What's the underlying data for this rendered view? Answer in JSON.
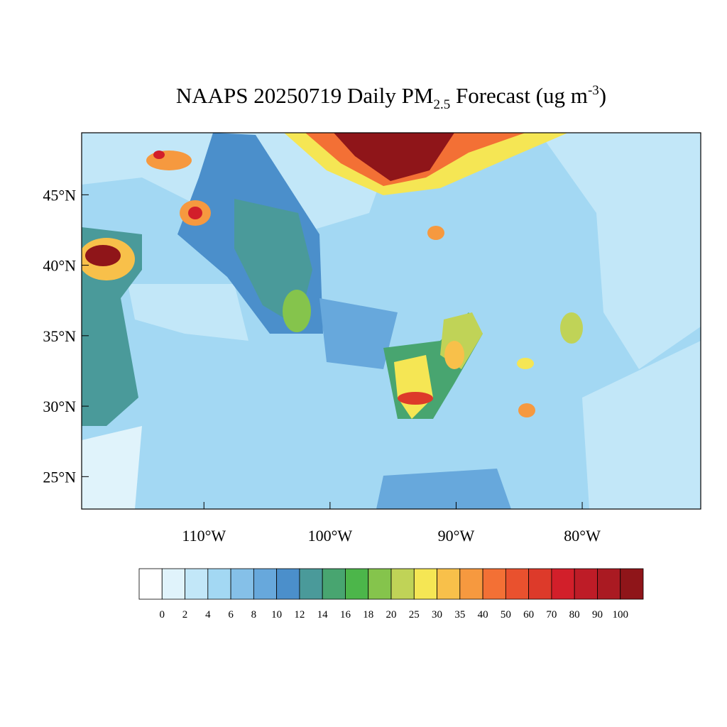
{
  "map": {
    "title": {
      "main": "NAAPS 20250719 Daily PM",
      "sub": "2.5",
      "rest": " Forecast (ug m",
      "sup": "-3",
      "end": ")"
    },
    "xlim": [
      -119.7,
      -70.6
    ],
    "ylim": [
      22.7,
      49.4
    ],
    "lat_ticks": [
      {
        "value": 45,
        "label": "45°N"
      },
      {
        "value": 40,
        "label": "40°N"
      },
      {
        "value": 35,
        "label": "35°N"
      },
      {
        "value": 30,
        "label": "30°N"
      },
      {
        "value": 25,
        "label": "25°N"
      }
    ],
    "lon_ticks": [
      {
        "value": -110,
        "label": "110°W"
      },
      {
        "value": -100,
        "label": "100°W"
      },
      {
        "value": -90,
        "label": "90°W"
      },
      {
        "value": -80,
        "label": "80°W"
      }
    ],
    "colorbar": {
      "levels": [
        0,
        2,
        4,
        6,
        8,
        10,
        12,
        14,
        16,
        18,
        20,
        25,
        30,
        35,
        40,
        50,
        60,
        70,
        80,
        90,
        100
      ],
      "colors": [
        "#ffffff",
        "#e0f3fb",
        "#c2e7f8",
        "#a3d8f3",
        "#85c0e8",
        "#67a8dc",
        "#4b8fcb",
        "#4a9a9a",
        "#48a570",
        "#4cb64a",
        "#85c44c",
        "#c0d357",
        "#f5e654",
        "#f8c04a",
        "#f6993f",
        "#f37035",
        "#e9512e",
        "#dd3a2a",
        "#d21f2a",
        "#be1c27",
        "#aa1a22",
        "#8f1519"
      ]
    }
  }
}
